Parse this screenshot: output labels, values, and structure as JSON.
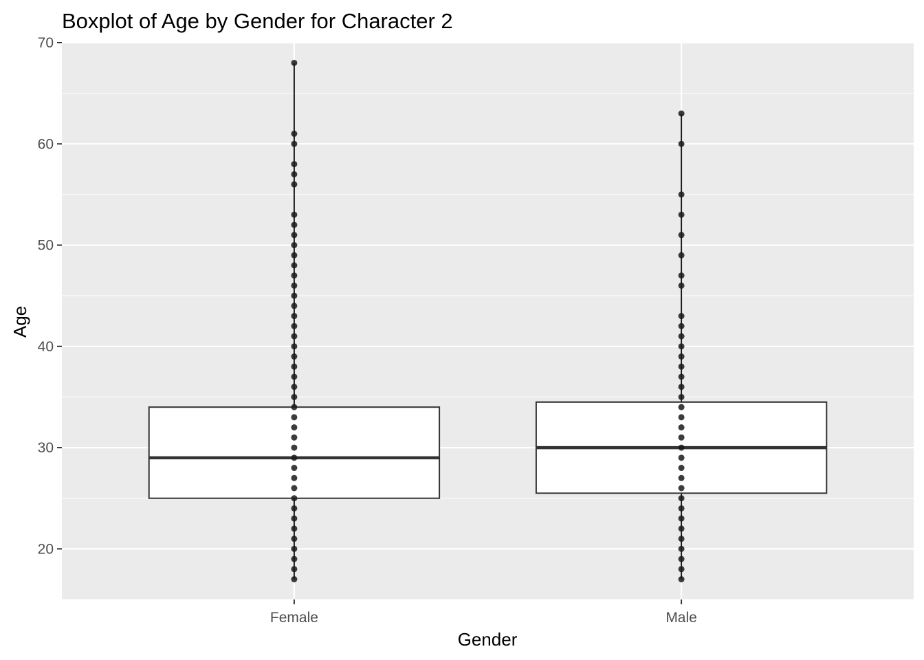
{
  "chart_data": {
    "type": "boxplot",
    "title": "Boxplot of Age by Gender for Character 2",
    "xlabel": "Gender",
    "ylabel": "Age",
    "categories": [
      "Female",
      "Male"
    ],
    "ylim": [
      15,
      70
    ],
    "yticks": [
      20,
      30,
      40,
      50,
      60,
      70
    ],
    "grid": true,
    "background_color": "#EBEBEB",
    "grid_color": "#FFFFFF",
    "box_fill": "#FFFFFF",
    "box_stroke": "#333333",
    "point_color": "#1a1a1a",
    "series": [
      {
        "category": "Female",
        "min": 17,
        "q1": 25,
        "median": 29,
        "q3": 34,
        "max": 68,
        "points": [
          17,
          18,
          19,
          20,
          21,
          22,
          23,
          24,
          25,
          26,
          27,
          28,
          29,
          30,
          31,
          32,
          33,
          34,
          35,
          36,
          37,
          38,
          39,
          40,
          41,
          42,
          43,
          44,
          45,
          46,
          47,
          48,
          49,
          50,
          51,
          52,
          53,
          56,
          57,
          58,
          60,
          61,
          68
        ]
      },
      {
        "category": "Male",
        "min": 17,
        "q1": 25.5,
        "median": 30,
        "q3": 34.5,
        "max": 63,
        "points": [
          17,
          18,
          19,
          20,
          21,
          22,
          23,
          24,
          25,
          26,
          27,
          28,
          29,
          30,
          31,
          32,
          33,
          34,
          35,
          36,
          37,
          38,
          39,
          40,
          41,
          42,
          43,
          46,
          47,
          49,
          51,
          53,
          55,
          60,
          63
        ]
      }
    ]
  }
}
